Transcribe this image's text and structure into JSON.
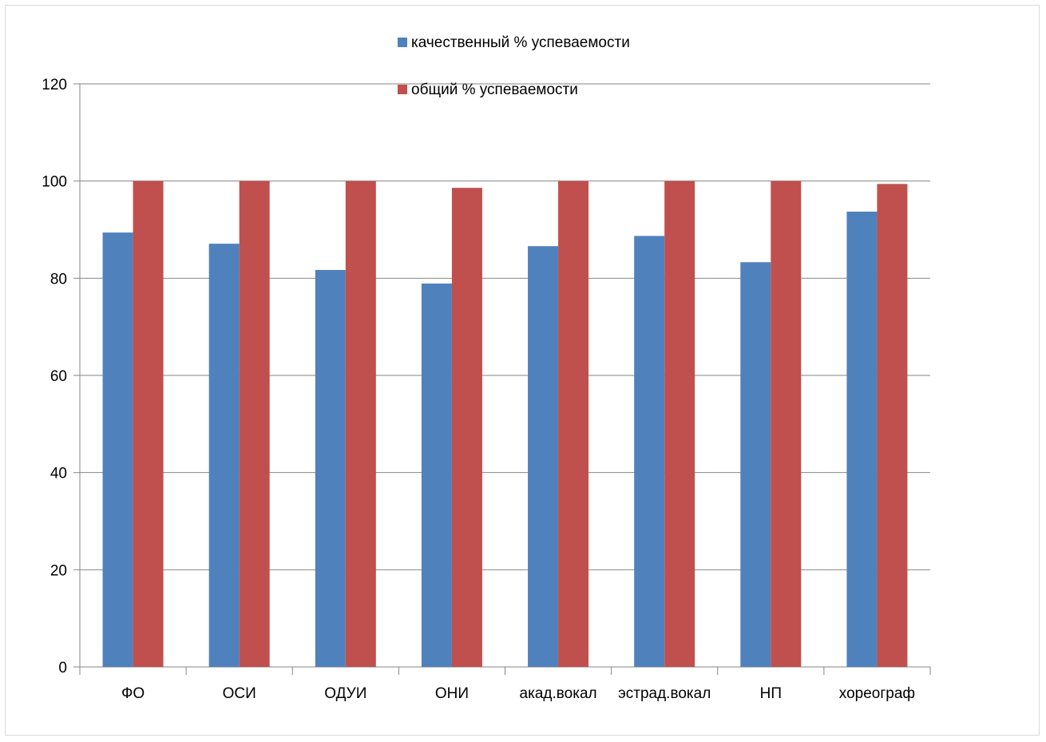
{
  "chart_data": {
    "type": "bar",
    "categories": [
      "ФО",
      "ОСИ",
      "ОДУИ",
      "ОНИ",
      "акад.вокал",
      "эстрад.вокал",
      "НП",
      "хореограф"
    ],
    "series": [
      {
        "name": "качественный % успеваемости",
        "color": "#4f81bd",
        "values": [
          89.4,
          87.1,
          81.7,
          78.9,
          86.6,
          88.7,
          83.3,
          93.7
        ]
      },
      {
        "name": "общий % успеваемости",
        "color": "#c0504d",
        "values": [
          100,
          100,
          100,
          98.6,
          100,
          100,
          100,
          99.4
        ]
      }
    ],
    "title": "",
    "xlabel": "",
    "ylabel": "",
    "ylim": [
      0,
      120
    ],
    "yticks": [
      "0",
      "20",
      "40",
      "60",
      "80",
      "100",
      "120"
    ],
    "grid": true,
    "legend": "top-center"
  }
}
